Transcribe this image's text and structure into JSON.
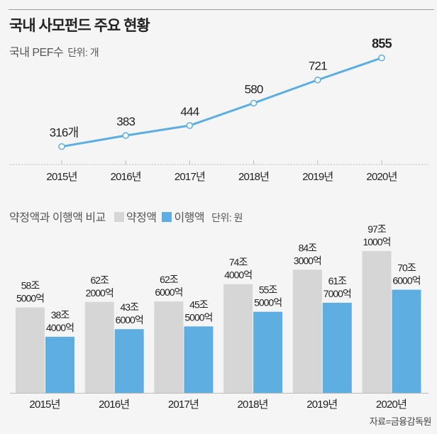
{
  "title": "국내 사모펀드 주요 현황",
  "source": "자료=금융감독원",
  "colors": {
    "accent": "#5aaee0",
    "gray_bar": "#d6d6d6",
    "blue_bar": "#5eaee2"
  },
  "chart_data": [
    {
      "type": "line",
      "title": "국내 PEF수",
      "unit": "단위: 개",
      "categories": [
        "2015년",
        "2016년",
        "2017년",
        "2018년",
        "2019년",
        "2020년"
      ],
      "values": [
        316,
        383,
        444,
        580,
        721,
        855
      ],
      "labels": [
        "316개",
        "383",
        "444",
        "580",
        "721",
        "855"
      ],
      "ylim": [
        0,
        1000
      ],
      "grid": false
    },
    {
      "type": "bar",
      "title": "약정액과 이행액 비교",
      "unit": "단위: 원",
      "categories": [
        "2015년",
        "2016년",
        "2017년",
        "2018년",
        "2019년",
        "2020년"
      ],
      "series": [
        {
          "name": "약정액",
          "values": [
            58.5,
            62.2,
            62.6,
            74.4,
            84.3,
            97.1
          ],
          "labels": [
            [
              "58조",
              "5000억"
            ],
            [
              "62조",
              "2000억"
            ],
            [
              "62조",
              "6000억"
            ],
            [
              "74조",
              "4000억"
            ],
            [
              "84조",
              "3000억"
            ],
            [
              "97조",
              "1000억"
            ]
          ]
        },
        {
          "name": "이행액",
          "values": [
            38.4,
            43.6,
            45.5,
            55.5,
            61.7,
            70.6
          ],
          "labels": [
            [
              "38조",
              "4000억"
            ],
            [
              "43조",
              "6000억"
            ],
            [
              "45조",
              "5000억"
            ],
            [
              "55조",
              "5000억"
            ],
            [
              "61조",
              "7000억"
            ],
            [
              "70조",
              "6000억"
            ]
          ]
        }
      ],
      "ylim": [
        0,
        100
      ],
      "legend": "top"
    }
  ]
}
